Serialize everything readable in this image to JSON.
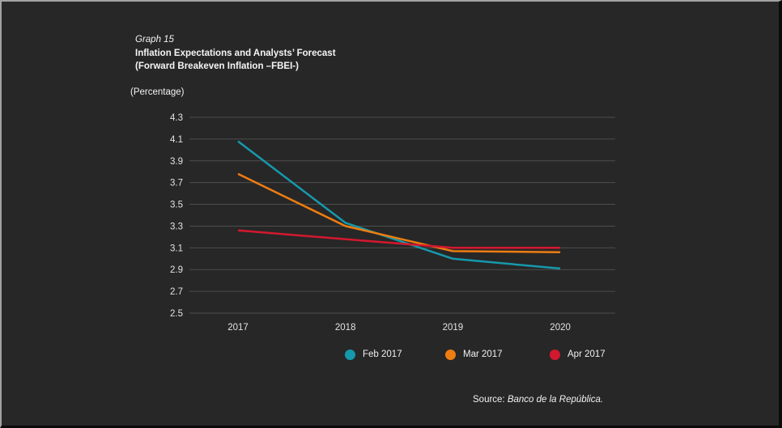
{
  "panel": {
    "background": "#272727",
    "graph_label": "Graph 15",
    "title_line1": "Inflation Expectations and Analysts’ Forecast",
    "title_line2": "(Forward Breakeven Inflation –FBEI-)",
    "unit_label": "(Percentage)",
    "source_prefix": "Source: ",
    "source_text": "Banco de la República."
  },
  "chart_data": {
    "type": "line",
    "title": "Inflation Expectations and Analysts’ Forecast (Forward Breakeven Inflation –FBEI-)",
    "ylabel": "(Percentage)",
    "categories": [
      "2017",
      "2018",
      "2019",
      "2020"
    ],
    "series": [
      {
        "name": "Feb 2017",
        "color": "#1699ac",
        "values": [
          4.08,
          3.33,
          3.0,
          2.91
        ]
      },
      {
        "name": "Mar 2017",
        "color": "#ee7d11",
        "values": [
          3.78,
          3.3,
          3.07,
          3.06
        ]
      },
      {
        "name": "Apr 2017",
        "color": "#d4182f",
        "values": [
          3.26,
          3.18,
          3.1,
          3.1
        ]
      }
    ],
    "ylim": [
      2.5,
      4.3
    ],
    "y_ticks": [
      "4.3",
      "4.1",
      "3.9",
      "3.7",
      "3.5",
      "3.3",
      "3.1",
      "2.9",
      "2.7",
      "2.5"
    ],
    "grid": "horizontal-only",
    "grid_color": "#4d4d4d",
    "legend_position": "bottom",
    "background": "#272727"
  }
}
